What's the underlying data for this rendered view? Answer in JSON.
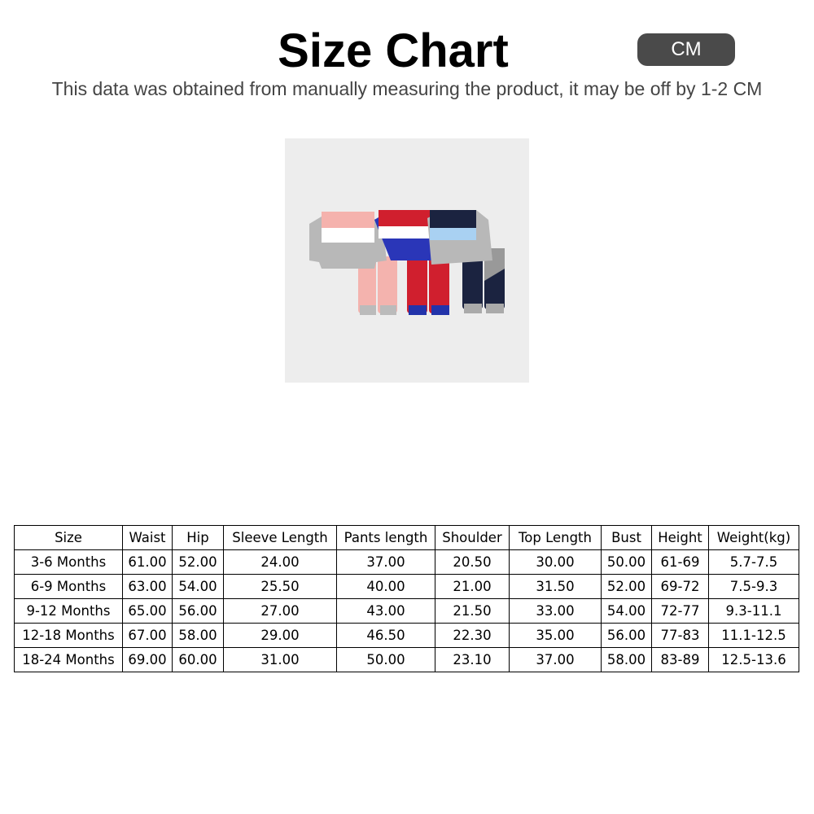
{
  "header": {
    "title": "Size Chart",
    "unit_badge": "CM",
    "subtitle": "This data was obtained from manually measuring the product, it may be off by 1-2 CM"
  },
  "product_image": {
    "alt": "Three kids sweatshirt and pants sets in pink, red/blue and navy"
  },
  "table": {
    "columns": [
      "Size",
      "Waist",
      "Hip",
      "Sleeve Length",
      "Pants length",
      "Shoulder",
      "Top Length",
      "Bust",
      "Height",
      "Weight(kg)"
    ],
    "rows": [
      [
        "3-6 Months",
        "61.00",
        "52.00",
        "24.00",
        "37.00",
        "20.50",
        "30.00",
        "50.00",
        "61-69",
        "5.7-7.5"
      ],
      [
        "6-9 Months",
        "63.00",
        "54.00",
        "25.50",
        "40.00",
        "21.00",
        "31.50",
        "52.00",
        "69-72",
        "7.5-9.3"
      ],
      [
        "9-12 Months",
        "65.00",
        "56.00",
        "27.00",
        "43.00",
        "21.50",
        "33.00",
        "54.00",
        "72-77",
        "9.3-11.1"
      ],
      [
        "12-18 Months",
        "67.00",
        "58.00",
        "29.00",
        "46.50",
        "22.30",
        "35.00",
        "56.00",
        "77-83",
        "11.1-12.5"
      ],
      [
        "18-24 Months",
        "69.00",
        "60.00",
        "31.00",
        "50.00",
        "23.10",
        "37.00",
        "58.00",
        "83-89",
        "12.5-13.6"
      ]
    ]
  }
}
